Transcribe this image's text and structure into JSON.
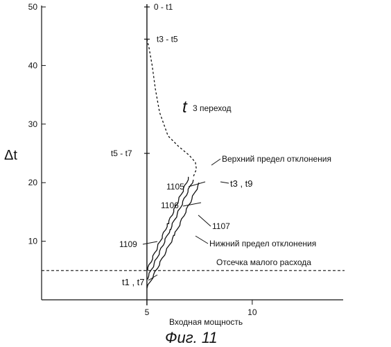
{
  "caption": "Фиг. 11",
  "chart_data": {
    "type": "line",
    "xlabel": "Входная мощность",
    "ylabel": "Δt",
    "xlim": [
      0,
      13
    ],
    "ylim": [
      0,
      50
    ],
    "x_ticks": [
      5,
      10
    ],
    "y_ticks": [
      10,
      20,
      30,
      40,
      50
    ],
    "grid": false,
    "axis_marks": [
      {
        "label": "0 - t1",
        "y": 50
      },
      {
        "label": "t3 - t5",
        "y": 44.5
      },
      {
        "label": "t5 - t7",
        "y": 25
      }
    ],
    "cutoff": {
      "label": "Отсечка малого расхода",
      "y": 5
    },
    "series": [
      {
        "name": "t3 переход",
        "style": "dashed",
        "x": [
          5,
          5.1,
          5.25,
          5.4,
          5.6,
          6.0,
          6.5,
          7.0,
          7.3,
          7.35,
          7.2
        ],
        "y": [
          44.5,
          43,
          40,
          36,
          32,
          28,
          26.2,
          24.7,
          23.5,
          22.3,
          21
        ]
      },
      {
        "name": "1106",
        "style": "solid",
        "x": [
          5,
          6.1,
          7.2
        ],
        "y": [
          3.5,
          12,
          20.5
        ]
      },
      {
        "name": "1105",
        "style": "solid",
        "x": [
          5,
          6,
          7
        ],
        "y": [
          5,
          13,
          21
        ]
      },
      {
        "name": "1107",
        "style": "solid",
        "x": [
          5,
          6.3,
          7.5
        ],
        "y": [
          2,
          11,
          20
        ]
      }
    ],
    "annotations": [
      {
        "text": "1105"
      },
      {
        "text": "1106"
      },
      {
        "text": "1107"
      },
      {
        "text": "1109"
      },
      {
        "text": "t3 , t9"
      },
      {
        "text": "t1 , t7"
      },
      {
        "text": "Верхний предел отклонения"
      },
      {
        "text": "Нижний предел отклонения"
      },
      {
        "text": "3 переход"
      }
    ]
  }
}
